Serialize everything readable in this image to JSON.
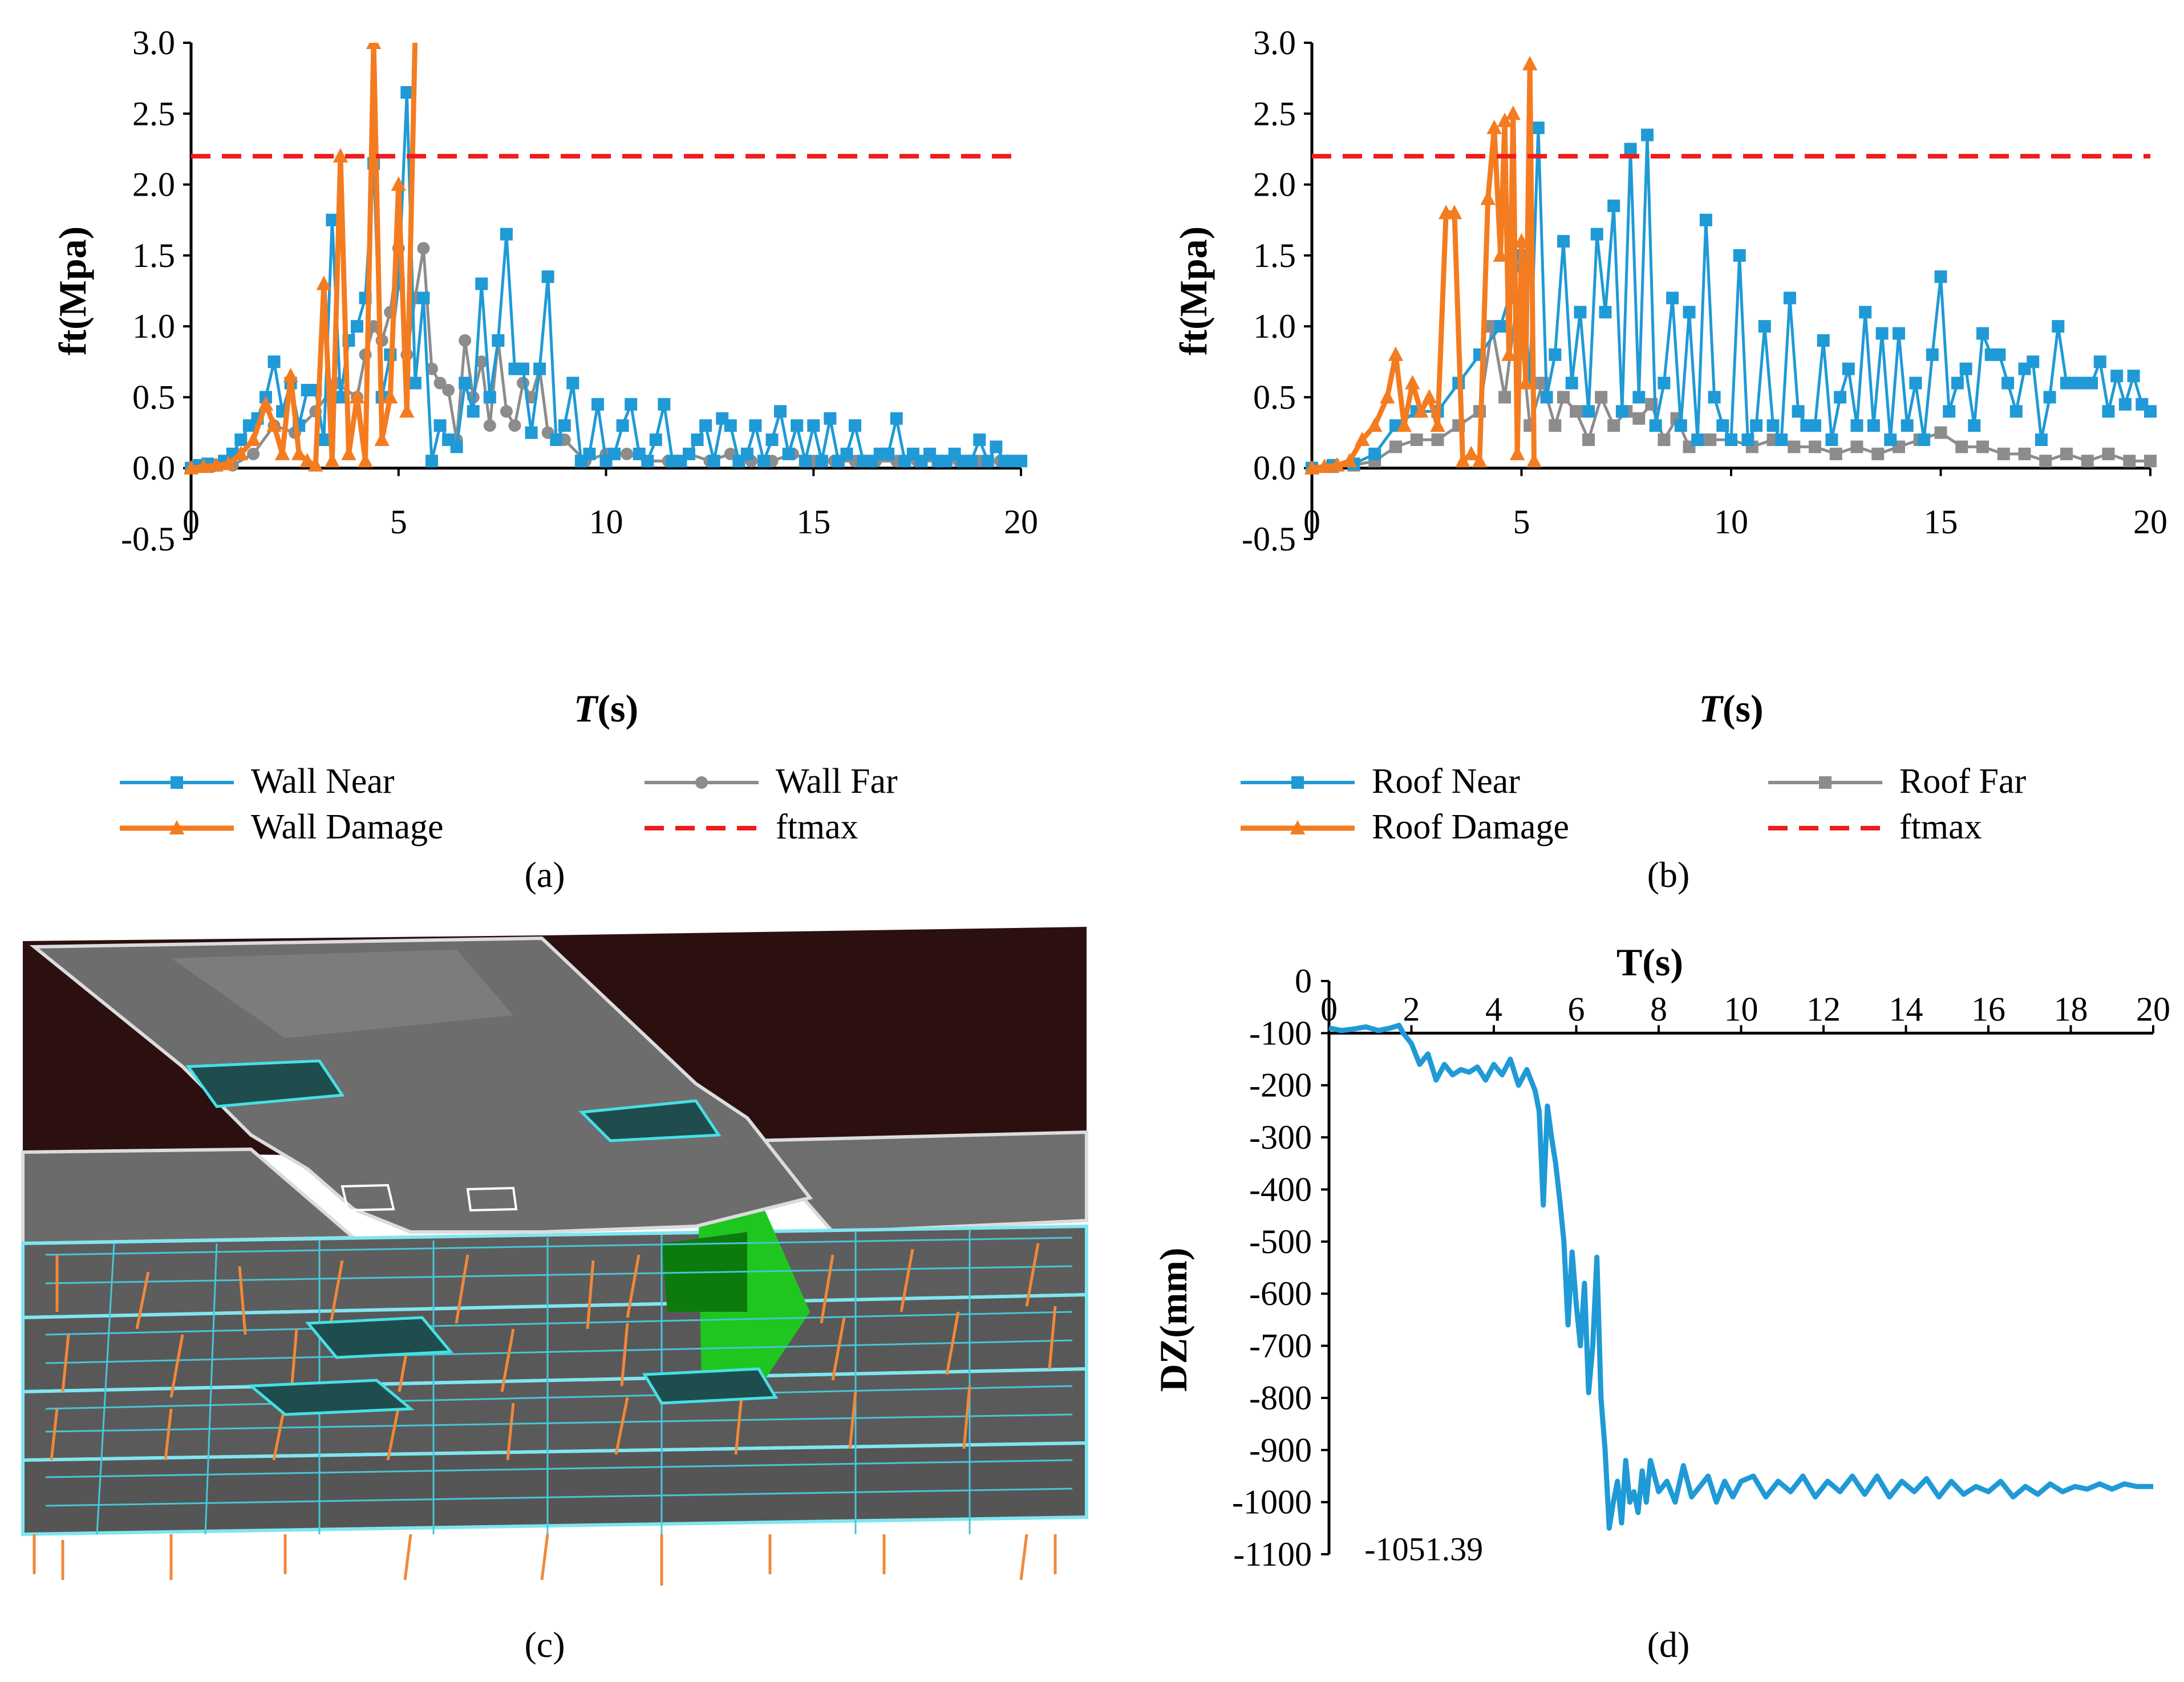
{
  "colors": {
    "near": "#1f9ad6",
    "far": "#8c8c8c",
    "damage": "#f47c20",
    "ftmax": "#ee1c1c",
    "axis": "#000000"
  },
  "panel_labels": {
    "a": "a",
    "b": "b",
    "c": "c",
    "d": "d"
  },
  "model_view": {
    "description_icon": "fem-model-3d-view"
  },
  "chart_data": [
    {
      "id": "a",
      "type": "line",
      "xlabel_italic": "T",
      "xlabel_unit": "(s)",
      "ylabel": "ft(Mpa)",
      "xlim": [
        0,
        20
      ],
      "ylim": [
        -0.5,
        3.0
      ],
      "xticks": [
        "0",
        "5",
        "10",
        "15",
        "20"
      ],
      "yticks": [
        "-0.5",
        "0.0",
        "0.5",
        "1.0",
        "1.5",
        "2.0",
        "2.5",
        "3.0"
      ],
      "ftmax": 2.2,
      "legend": [
        {
          "label": "Wall Near",
          "marker": "square",
          "series": "near"
        },
        {
          "label": "Wall Far",
          "marker": "circle",
          "series": "far"
        },
        {
          "label": "Wall Damage",
          "marker": "triangle",
          "series": "damage"
        },
        {
          "label": "ftmax",
          "marker": "dash",
          "series": "ftmax"
        }
      ],
      "series": [
        {
          "name": "Wall Near",
          "key": "near",
          "marker": "square",
          "x": [
            0,
            0.2,
            0.4,
            0.6,
            0.8,
            1.0,
            1.2,
            1.4,
            1.6,
            1.8,
            2.0,
            2.2,
            2.4,
            2.6,
            2.8,
            3.0,
            3.2,
            3.4,
            3.6,
            3.8,
            4.0,
            4.2,
            4.4,
            4.6,
            4.8,
            5.0,
            5.2,
            5.4,
            5.6,
            5.8,
            6.0,
            6.2,
            6.4,
            6.6,
            6.8,
            7.0,
            7.2,
            7.4,
            7.6,
            7.8,
            8.0,
            8.2,
            8.4,
            8.6,
            8.8,
            9.0,
            9.2,
            9.4,
            9.6,
            9.8,
            10.0,
            10.2,
            10.4,
            10.6,
            10.8,
            11.0,
            11.2,
            11.4,
            11.6,
            11.8,
            12.0,
            12.2,
            12.4,
            12.6,
            12.8,
            13.0,
            13.2,
            13.4,
            13.6,
            13.8,
            14.0,
            14.2,
            14.4,
            14.6,
            14.8,
            15.0,
            15.2,
            15.4,
            15.6,
            15.8,
            16.0,
            16.2,
            16.4,
            16.6,
            16.8,
            17.0,
            17.2,
            17.4,
            17.6,
            17.8,
            18.0,
            18.2,
            18.4,
            18.6,
            18.8,
            19.0,
            19.2,
            19.4,
            19.6,
            19.8,
            20.0
          ],
          "y": [
            0,
            0.02,
            0.03,
            0.02,
            0.05,
            0.1,
            0.2,
            0.3,
            0.35,
            0.5,
            0.75,
            0.4,
            0.6,
            0.3,
            0.55,
            0.55,
            0.2,
            1.75,
            0.5,
            0.9,
            1.0,
            1.2,
            2.15,
            0.5,
            0.8,
            1.3,
            2.65,
            0.6,
            1.2,
            0.05,
            0.3,
            0.2,
            0.15,
            0.6,
            0.4,
            1.3,
            0.5,
            0.9,
            1.65,
            0.7,
            0.7,
            0.25,
            0.7,
            1.35,
            0.2,
            0.3,
            0.6,
            0.05,
            0.1,
            0.45,
            0.05,
            0.1,
            0.3,
            0.45,
            0.1,
            0.05,
            0.2,
            0.45,
            0.05,
            0.05,
            0.1,
            0.2,
            0.3,
            0.05,
            0.35,
            0.3,
            0.05,
            0.1,
            0.3,
            0.05,
            0.2,
            0.4,
            0.1,
            0.3,
            0.05,
            0.3,
            0.05,
            0.35,
            0.05,
            0.1,
            0.3,
            0.05,
            0.05,
            0.1,
            0.1,
            0.35,
            0.05,
            0.1,
            0.05,
            0.1,
            0.05,
            0.05,
            0.1,
            0.05,
            0.05,
            0.2,
            0.05,
            0.15,
            0.05,
            0.05,
            0.05
          ]
        },
        {
          "name": "Wall Far",
          "key": "far",
          "marker": "circle",
          "x": [
            0,
            0.5,
            1.0,
            1.5,
            2.0,
            2.5,
            3.0,
            3.5,
            4.0,
            4.2,
            4.4,
            4.6,
            4.8,
            5.0,
            5.2,
            5.4,
            5.6,
            5.8,
            6.0,
            6.2,
            6.4,
            6.6,
            6.8,
            7.0,
            7.2,
            7.4,
            7.6,
            7.8,
            8.0,
            8.2,
            8.4,
            8.6,
            8.8,
            9.0,
            9.5,
            10.0,
            10.5,
            11.0,
            11.5,
            12.0,
            12.5,
            13.0,
            13.5,
            14.0,
            14.5,
            15.0,
            15.5,
            16.0,
            16.5,
            17.0,
            17.5,
            18.0,
            18.5,
            19.0,
            19.5,
            20.0
          ],
          "y": [
            0,
            0.01,
            0.02,
            0.1,
            0.3,
            0.25,
            0.4,
            0.6,
            0.5,
            0.8,
            1.0,
            0.9,
            1.1,
            1.55,
            0.8,
            1.2,
            1.55,
            0.7,
            0.6,
            0.55,
            0.2,
            0.9,
            0.5,
            0.75,
            0.3,
            0.9,
            0.4,
            0.3,
            0.6,
            0.5,
            0.7,
            0.25,
            0.2,
            0.2,
            0.05,
            0.1,
            0.1,
            0.05,
            0.05,
            0.1,
            0.05,
            0.1,
            0.05,
            0.05,
            0.1,
            0.05,
            0.05,
            0.05,
            0.05,
            0.05,
            0.05,
            0.05,
            0.05,
            0.05,
            0.05,
            0.05
          ]
        },
        {
          "name": "Wall Damage",
          "key": "damage",
          "marker": "triangle",
          "x": [
            0,
            0.3,
            0.6,
            0.9,
            1.2,
            1.5,
            1.8,
            2.0,
            2.2,
            2.4,
            2.6,
            2.8,
            3.0,
            3.2,
            3.4,
            3.6,
            3.8,
            4.0,
            4.2,
            4.4,
            4.6,
            4.8,
            5.0,
            5.2,
            5.4
          ],
          "y": [
            0,
            0.01,
            0.02,
            0.03,
            0.1,
            0.2,
            0.45,
            0.3,
            0.1,
            0.65,
            0.1,
            0.05,
            0.02,
            1.3,
            0.05,
            2.2,
            0.1,
            0.5,
            0.05,
            3.0,
            0.2,
            0.5,
            2.0,
            0.4,
            3.05
          ]
        }
      ]
    },
    {
      "id": "b",
      "type": "line",
      "xlabel_italic": "T",
      "xlabel_unit": "(s)",
      "ylabel": "ft(Mpa)",
      "xlim": [
        0,
        20
      ],
      "ylim": [
        -0.5,
        3.0
      ],
      "xticks": [
        "0",
        "5",
        "10",
        "15",
        "20"
      ],
      "yticks": [
        "-0.5",
        "0.0",
        "0.5",
        "1.0",
        "1.5",
        "2.0",
        "2.5",
        "3.0"
      ],
      "ftmax": 2.2,
      "legend": [
        {
          "label": "Roof Near",
          "marker": "square",
          "series": "near"
        },
        {
          "label": "Roof Far",
          "marker": "square",
          "series": "far"
        },
        {
          "label": "Roof Damage",
          "marker": "triangle",
          "series": "damage"
        },
        {
          "label": "ftmax",
          "marker": "dash",
          "series": "ftmax"
        }
      ],
      "series": [
        {
          "name": "Roof Near",
          "key": "near",
          "marker": "square",
          "x": [
            0,
            0.5,
            1.0,
            1.5,
            2.0,
            2.5,
            3.0,
            3.5,
            4.0,
            4.5,
            5.0,
            5.2,
            5.4,
            5.6,
            5.8,
            6.0,
            6.2,
            6.4,
            6.6,
            6.8,
            7.0,
            7.2,
            7.4,
            7.6,
            7.8,
            8.0,
            8.2,
            8.4,
            8.6,
            8.8,
            9.0,
            9.2,
            9.4,
            9.6,
            9.8,
            10.0,
            10.2,
            10.4,
            10.6,
            10.8,
            11.0,
            11.2,
            11.4,
            11.6,
            11.8,
            12.0,
            12.2,
            12.4,
            12.6,
            12.8,
            13.0,
            13.2,
            13.4,
            13.6,
            13.8,
            14.0,
            14.2,
            14.4,
            14.6,
            14.8,
            15.0,
            15.2,
            15.4,
            15.6,
            15.8,
            16.0,
            16.2,
            16.4,
            16.6,
            16.8,
            17.0,
            17.2,
            17.4,
            17.6,
            17.8,
            18.0,
            18.2,
            18.4,
            18.6,
            18.8,
            19.0,
            19.2,
            19.4,
            19.6,
            19.8,
            20.0
          ],
          "y": [
            0,
            0.02,
            0.03,
            0.1,
            0.3,
            0.4,
            0.4,
            0.6,
            0.8,
            1.0,
            1.5,
            0.6,
            2.4,
            0.5,
            0.8,
            1.6,
            0.6,
            1.1,
            0.4,
            1.65,
            1.1,
            1.85,
            0.4,
            2.25,
            0.5,
            2.35,
            0.3,
            0.6,
            1.2,
            0.3,
            1.1,
            0.2,
            1.75,
            0.5,
            0.3,
            0.2,
            1.5,
            0.2,
            0.3,
            1.0,
            0.3,
            0.2,
            1.2,
            0.4,
            0.3,
            0.3,
            0.9,
            0.2,
            0.5,
            0.7,
            0.3,
            1.1,
            0.3,
            0.95,
            0.2,
            0.95,
            0.3,
            0.6,
            0.2,
            0.8,
            1.35,
            0.4,
            0.6,
            0.7,
            0.3,
            0.95,
            0.8,
            0.8,
            0.6,
            0.4,
            0.7,
            0.75,
            0.2,
            0.5,
            1.0,
            0.6,
            0.6,
            0.6,
            0.6,
            0.75,
            0.4,
            0.65,
            0.45,
            0.65,
            0.45,
            0.4
          ]
        },
        {
          "name": "Roof Far",
          "key": "far",
          "marker": "square",
          "x": [
            0,
            0.5,
            1.0,
            1.5,
            2.0,
            2.5,
            3.0,
            3.5,
            4.0,
            4.3,
            4.6,
            4.9,
            5.2,
            5.5,
            5.8,
            6.0,
            6.3,
            6.6,
            6.9,
            7.2,
            7.5,
            7.8,
            8.1,
            8.4,
            8.7,
            9.0,
            9.5,
            10.0,
            10.5,
            11.0,
            11.5,
            12.0,
            12.5,
            13.0,
            13.5,
            14.0,
            14.5,
            15.0,
            15.5,
            16.0,
            16.5,
            17.0,
            17.5,
            18.0,
            18.5,
            19.0,
            19.5,
            20.0
          ],
          "y": [
            0,
            0.01,
            0.02,
            0.05,
            0.15,
            0.2,
            0.2,
            0.3,
            0.4,
            1.0,
            0.5,
            1.2,
            0.3,
            0.6,
            0.3,
            0.5,
            0.4,
            0.2,
            0.5,
            0.3,
            0.4,
            0.35,
            0.45,
            0.2,
            0.35,
            0.15,
            0.2,
            0.2,
            0.15,
            0.2,
            0.15,
            0.15,
            0.1,
            0.15,
            0.1,
            0.15,
            0.2,
            0.25,
            0.15,
            0.15,
            0.1,
            0.1,
            0.05,
            0.1,
            0.05,
            0.1,
            0.05,
            0.05
          ]
        },
        {
          "name": "Roof Damage",
          "key": "damage",
          "marker": "triangle",
          "x": [
            0,
            0.3,
            0.6,
            0.9,
            1.2,
            1.5,
            1.8,
            2.0,
            2.2,
            2.4,
            2.6,
            2.8,
            3.0,
            3.2,
            3.4,
            3.6,
            3.8,
            4.0,
            4.2,
            4.35,
            4.5,
            4.6,
            4.7,
            4.8,
            4.9,
            5.0,
            5.1,
            5.2,
            5.3
          ],
          "y": [
            0,
            0.01,
            0.02,
            0.05,
            0.2,
            0.3,
            0.5,
            0.8,
            0.3,
            0.6,
            0.4,
            0.5,
            0.3,
            1.8,
            1.8,
            0.05,
            0.1,
            0.05,
            1.9,
            2.4,
            1.5,
            2.45,
            0.8,
            2.5,
            0.1,
            1.6,
            0.6,
            2.85,
            0.05
          ]
        }
      ]
    },
    {
      "id": "d",
      "type": "line",
      "xlabel": "T(s)",
      "ylabel": "DZ(mm)",
      "xlim": [
        0,
        20
      ],
      "ylim": [
        -1100,
        0
      ],
      "xticks": [
        "0",
        "2",
        "4",
        "6",
        "8",
        "10",
        "12",
        "14",
        "16",
        "18",
        "20"
      ],
      "yticks": [
        "0",
        "-100",
        "-200",
        "-300",
        "-400",
        "-500",
        "-600",
        "-700",
        "-800",
        "-900",
        "-1000",
        "-1100"
      ],
      "annotation": "-1051.39",
      "series": [
        {
          "name": "DZ",
          "key": "near",
          "x": [
            0,
            0.3,
            0.6,
            0.9,
            1.2,
            1.5,
            1.7,
            1.8,
            2.0,
            2.2,
            2.4,
            2.6,
            2.8,
            3.0,
            3.2,
            3.4,
            3.6,
            3.8,
            4.0,
            4.2,
            4.4,
            4.6,
            4.8,
            5.0,
            5.1,
            5.2,
            5.3,
            5.4,
            5.5,
            5.6,
            5.7,
            5.8,
            5.9,
            6.0,
            6.1,
            6.2,
            6.3,
            6.4,
            6.5,
            6.6,
            6.7,
            6.8,
            6.9,
            7.0,
            7.1,
            7.2,
            7.3,
            7.4,
            7.5,
            7.6,
            7.7,
            7.8,
            8.0,
            8.2,
            8.4,
            8.6,
            8.8,
            9.0,
            9.2,
            9.4,
            9.6,
            9.8,
            10.0,
            10.3,
            10.6,
            10.9,
            11.2,
            11.5,
            11.8,
            12.1,
            12.4,
            12.7,
            13.0,
            13.3,
            13.6,
            13.9,
            14.2,
            14.5,
            14.8,
            15.1,
            15.4,
            15.7,
            16.0,
            16.3,
            16.6,
            16.9,
            17.2,
            17.5,
            17.8,
            18.1,
            18.4,
            18.7,
            19.0,
            19.3,
            19.6,
            20.0
          ],
          "y": [
            -90,
            -95,
            -92,
            -88,
            -95,
            -90,
            -85,
            -100,
            -120,
            -160,
            -140,
            -190,
            -160,
            -180,
            -170,
            -175,
            -165,
            -190,
            -160,
            -180,
            -150,
            -200,
            -170,
            -210,
            -250,
            -430,
            -240,
            -300,
            -350,
            -420,
            -500,
            -660,
            -520,
            -620,
            -700,
            -580,
            -790,
            -700,
            -530,
            -800,
            -900,
            -1050,
            -1000,
            -960,
            -1040,
            -920,
            -1000,
            -980,
            -1020,
            -940,
            -1000,
            -920,
            -980,
            -960,
            -1000,
            -930,
            -990,
            -970,
            -950,
            -1000,
            -960,
            -990,
            -960,
            -950,
            -990,
            -960,
            -980,
            -950,
            -990,
            -960,
            -980,
            -950,
            -985,
            -950,
            -990,
            -960,
            -980,
            -955,
            -990,
            -960,
            -985,
            -970,
            -980,
            -960,
            -990,
            -970,
            -985,
            -965,
            -980,
            -970,
            -975,
            -965,
            -975,
            -965,
            -970,
            -970
          ]
        }
      ]
    }
  ]
}
